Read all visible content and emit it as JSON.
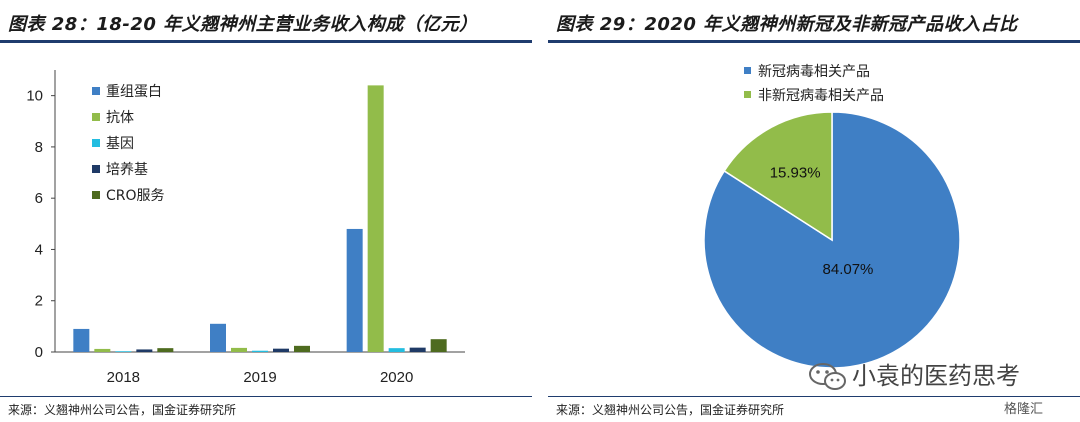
{
  "left_panel": {
    "title": "图表 28：18-20 年义翘神州主营业务收入构成（亿元）",
    "source": "来源：义翘神州公司公告，国金证券研究所"
  },
  "right_panel": {
    "title": "图表 29：2020 年义翘神州新冠及非新冠产品收入占比",
    "source": "来源：义翘神州公司公告，国金证券研究所"
  },
  "watermark": {
    "text": "小袁的医药思考",
    "icon": "wechat-icon"
  },
  "corner_logo": {
    "text": "格隆汇"
  },
  "chart_data": [
    {
      "type": "bar",
      "categories": [
        "2018",
        "2019",
        "2020"
      ],
      "series": [
        {
          "name": "重组蛋白",
          "color": "#3f7fc5",
          "values": [
            0.9,
            1.1,
            4.8
          ]
        },
        {
          "name": "抗体",
          "color": "#92bc4a",
          "values": [
            0.12,
            0.16,
            10.4
          ]
        },
        {
          "name": "基因",
          "color": "#23bde0",
          "values": [
            0.03,
            0.05,
            0.15
          ]
        },
        {
          "name": "培养基",
          "color": "#1f3a66",
          "values": [
            0.1,
            0.13,
            0.17
          ]
        },
        {
          "name": "CRO服务",
          "color": "#4e6b1f",
          "values": [
            0.15,
            0.24,
            0.5
          ]
        }
      ],
      "yticks": [
        "0",
        "2",
        "4",
        "6",
        "8",
        "10"
      ],
      "ylim": [
        0,
        11
      ],
      "legend_position": "top-left",
      "grid": false
    },
    {
      "type": "pie",
      "slices": [
        {
          "name": "新冠病毒相关产品",
          "label": "84.07%",
          "value": 84.07,
          "color": "#3f7fc5"
        },
        {
          "name": "非新冠病毒相关产品",
          "label": "15.93%",
          "value": 15.93,
          "color": "#92bc4a"
        }
      ],
      "legend_position": "top-center"
    }
  ]
}
